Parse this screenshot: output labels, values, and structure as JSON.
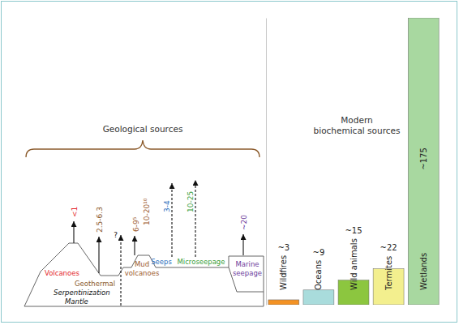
{
  "chart_data": {
    "type": "bar",
    "title": "Modern biochemical sources",
    "categories": [
      "Wildfires",
      "Oceans",
      "Wild animals",
      "Termites",
      "Wetlands"
    ],
    "values": [
      3,
      9,
      15,
      22,
      175
    ],
    "value_labels": [
      "~3",
      "~9",
      "~15",
      "~22",
      "~175"
    ],
    "colors": [
      "#f39224",
      "#a9dcdc",
      "#8cc63f",
      "#f3ef8e",
      "#a8d8a0"
    ],
    "ylim": [
      0,
      175
    ],
    "data_labels": true,
    "tick_labels": false
  },
  "geological": {
    "title": "Geological sources",
    "sources": [
      {
        "name": "Volcanoes",
        "values": [
          "<1"
        ],
        "color": "#e3262a",
        "line_style": "solid"
      },
      {
        "name": "Geothermal",
        "values": [
          "2.5-6.3"
        ],
        "color": "#8b5a2b",
        "line_style": "solid"
      },
      {
        "name": "Mud volcanoes",
        "values": [
          "6-9⁵",
          "10-20¹⁰"
        ],
        "color": "#9c5b2e",
        "line_style": "solid"
      },
      {
        "name": "Seeps",
        "values": [
          "3-4"
        ],
        "color": "#2a6ebb",
        "line_style": "dashed"
      },
      {
        "name": "Microseepage",
        "values": [
          "10-25"
        ],
        "color": "#3a9e3a",
        "line_style": "dashed"
      },
      {
        "name": "Marine seepage",
        "values": [
          "~20"
        ],
        "color": "#6d3c9c",
        "line_style": "solid"
      }
    ],
    "serpentinization": {
      "labels": [
        "Serpentinization",
        "Mantle"
      ],
      "value": "?",
      "line_style": "dashed"
    }
  }
}
